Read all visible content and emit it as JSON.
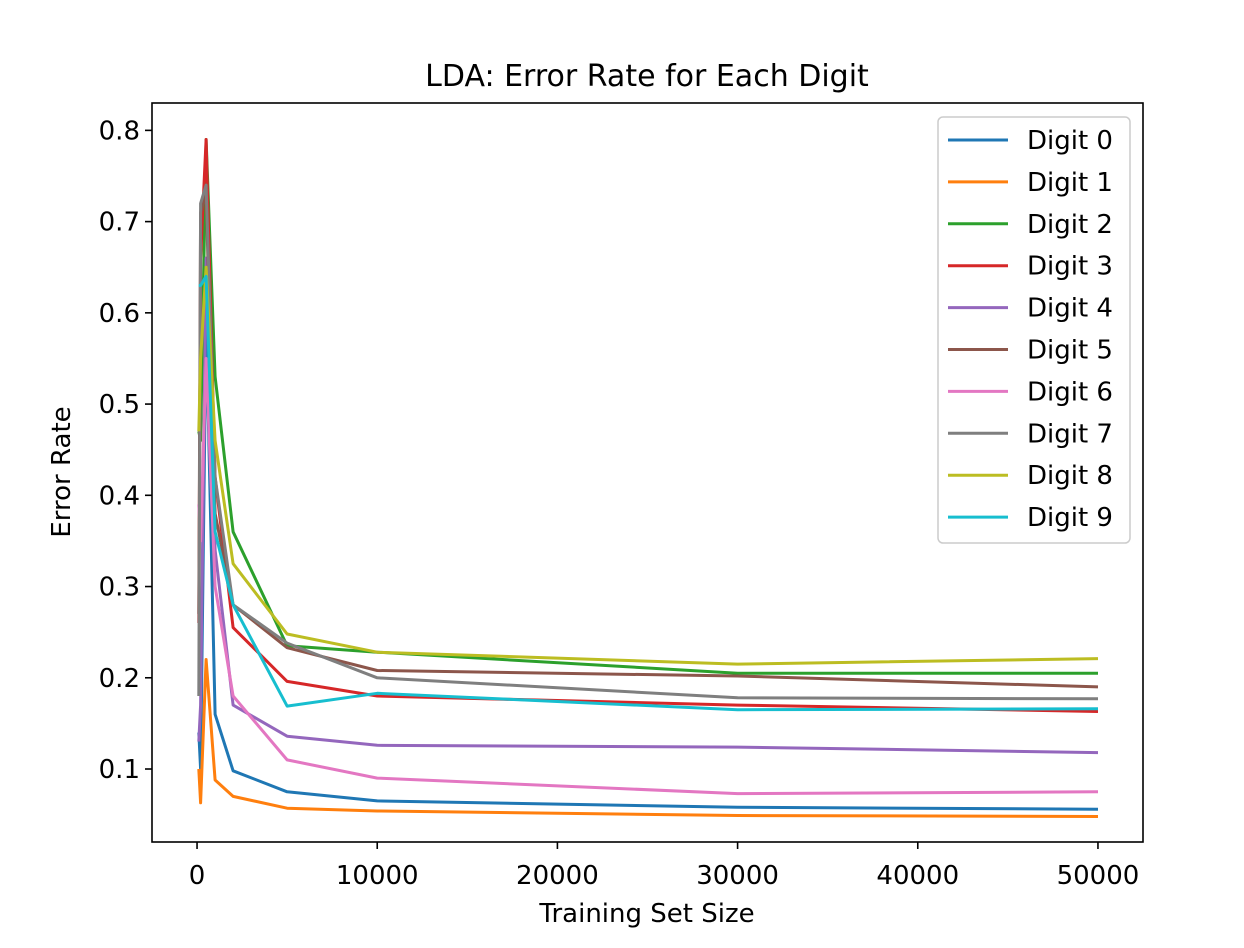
{
  "chart_data": {
    "type": "line",
    "title": "LDA: Error Rate for Each Digit",
    "xlabel": "Training Set Size",
    "ylabel": "Error Rate",
    "xlim": [
      -2500,
      52500
    ],
    "ylim": [
      0.02,
      0.83
    ],
    "xticks": [
      0,
      10000,
      20000,
      30000,
      40000,
      50000
    ],
    "xtick_labels": [
      "0",
      "10000",
      "20000",
      "30000",
      "40000",
      "50000"
    ],
    "yticks": [
      0.1,
      0.2,
      0.3,
      0.4,
      0.5,
      0.6,
      0.7,
      0.8
    ],
    "ytick_labels": [
      "0.1",
      "0.2",
      "0.3",
      "0.4",
      "0.5",
      "0.6",
      "0.7",
      "0.8"
    ],
    "grid": false,
    "legend_position": "top-right",
    "x": [
      100,
      200,
      500,
      1000,
      2000,
      5000,
      10000,
      30000,
      50000
    ],
    "series": [
      {
        "name": "Digit 0",
        "color": "#1f77b4",
        "values": [
          0.14,
          0.1,
          0.59,
          0.16,
          0.098,
          0.075,
          0.065,
          0.058,
          0.056
        ]
      },
      {
        "name": "Digit 1",
        "color": "#ff7f0e",
        "values": [
          0.1,
          0.063,
          0.22,
          0.088,
          0.07,
          0.057,
          0.054,
          0.049,
          0.048
        ]
      },
      {
        "name": "Digit 2",
        "color": "#2ca02c",
        "values": [
          0.47,
          0.46,
          0.79,
          0.53,
          0.36,
          0.235,
          0.228,
          0.205,
          0.205
        ]
      },
      {
        "name": "Digit 3",
        "color": "#d62728",
        "values": [
          0.26,
          0.66,
          0.79,
          0.42,
          0.255,
          0.196,
          0.18,
          0.17,
          0.163
        ]
      },
      {
        "name": "Digit 4",
        "color": "#9467bd",
        "values": [
          0.13,
          0.17,
          0.66,
          0.34,
          0.17,
          0.136,
          0.126,
          0.124,
          0.118
        ]
      },
      {
        "name": "Digit 5",
        "color": "#8c564b",
        "values": [
          0.27,
          0.71,
          0.73,
          0.38,
          0.28,
          0.233,
          0.208,
          0.202,
          0.19
        ]
      },
      {
        "name": "Digit 6",
        "color": "#e377c2",
        "values": [
          0.39,
          0.35,
          0.55,
          0.3,
          0.18,
          0.11,
          0.09,
          0.073,
          0.075
        ]
      },
      {
        "name": "Digit 7",
        "color": "#7f7f7f",
        "values": [
          0.18,
          0.72,
          0.74,
          0.42,
          0.28,
          0.238,
          0.2,
          0.178,
          0.177
        ]
      },
      {
        "name": "Digit 8",
        "color": "#bcbd22",
        "values": [
          0.47,
          0.55,
          0.65,
          0.46,
          0.325,
          0.248,
          0.228,
          0.215,
          0.221
        ]
      },
      {
        "name": "Digit 9",
        "color": "#17becf",
        "values": [
          0.63,
          0.63,
          0.64,
          0.36,
          0.28,
          0.169,
          0.183,
          0.165,
          0.166
        ]
      }
    ]
  }
}
